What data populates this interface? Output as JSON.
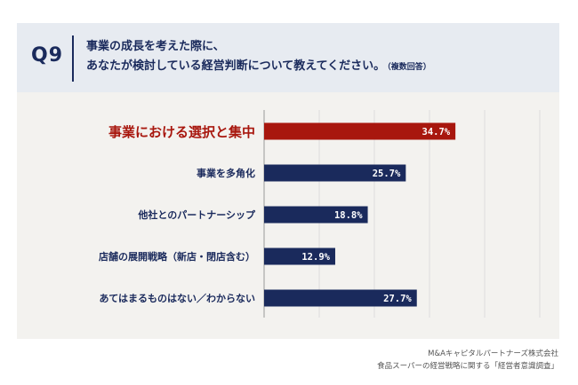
{
  "header": {
    "qnum": "Q9",
    "line1": "事業の成長を考えた際に、",
    "line2": "あなたが検討している経営判断について教えてください。",
    "note": "（複数回答）"
  },
  "chart_data": {
    "type": "bar",
    "orientation": "horizontal",
    "categories": [
      "事業における選択と集中",
      "事業を多角化",
      "他社とのパートナーシップ",
      "店舗の展開戦略（新店・閉店含む）",
      "あてはまるものはない／わからない"
    ],
    "values": [
      34.7,
      25.7,
      18.8,
      12.9,
      27.7
    ],
    "labels": [
      "34.7%",
      "25.7%",
      "18.8%",
      "12.9%",
      "27.7%"
    ],
    "xlim": [
      0,
      50
    ],
    "grid": true,
    "highlight_index": 0,
    "colors": {
      "highlight": "#a8170e",
      "default": "#1a2a5c"
    }
  },
  "source": {
    "line1": "M&Aキャピタルパートナーズ株式会社",
    "line2": "食品スーパーの経営戦略に関する「経営者意識調査」"
  }
}
